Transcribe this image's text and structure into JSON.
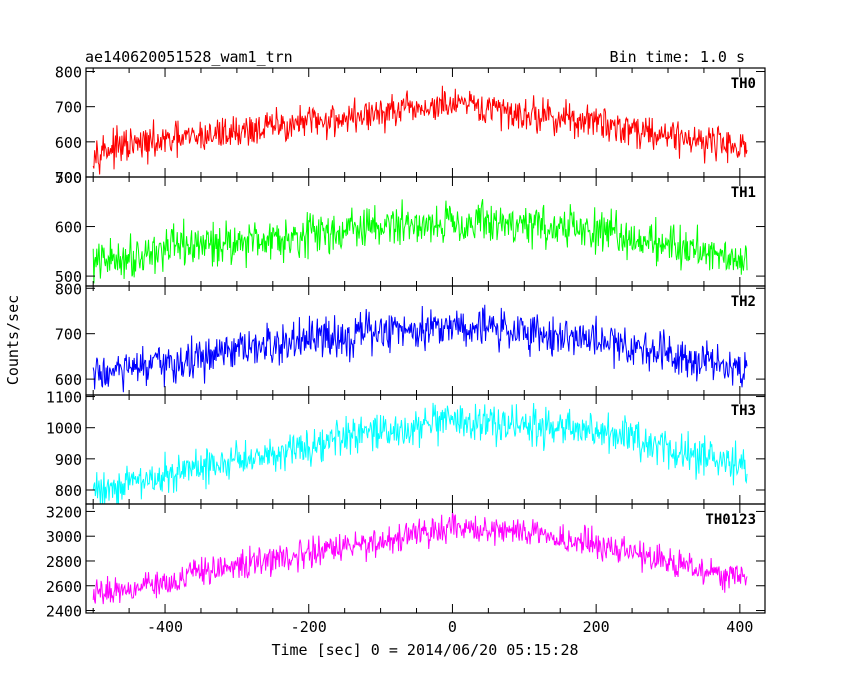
{
  "header": {
    "title": "ae140620051528_wam1_trn",
    "bin_time": "Bin time: 1.0 s"
  },
  "chart_data": {
    "type": "line",
    "title": "ae140620051528_wam1_trn",
    "subtitle": "Bin time: 1.0 s",
    "xlabel": "Time [sec] 0 = 2014/06/20 05:15:28",
    "ylabel": "Counts/sec",
    "xlim": [
      -510,
      435
    ],
    "x_ticks": [
      -400,
      -200,
      0,
      200,
      400
    ],
    "x_start": -500,
    "x_end": 410,
    "bin": 1.0,
    "panels": [
      {
        "name": "TH0",
        "color": "#ff0000",
        "ylim": [
          500,
          810
        ],
        "y_ticks": [
          500,
          600,
          700,
          800
        ],
        "trend": [
          [
            -500,
            575
          ],
          [
            -400,
            600
          ],
          [
            -300,
            630
          ],
          [
            -200,
            655
          ],
          [
            -100,
            680
          ],
          [
            0,
            705
          ],
          [
            100,
            680
          ],
          [
            200,
            655
          ],
          [
            300,
            620
          ],
          [
            410,
            585
          ]
        ],
        "noise": 32
      },
      {
        "name": "TH1",
        "color": "#00ff00",
        "ylim": [
          480,
          700
        ],
        "y_ticks": [
          500,
          600,
          700
        ],
        "trend": [
          [
            -500,
            525
          ],
          [
            -400,
            555
          ],
          [
            -300,
            570
          ],
          [
            -200,
            585
          ],
          [
            -100,
            600
          ],
          [
            0,
            610
          ],
          [
            100,
            605
          ],
          [
            200,
            590
          ],
          [
            300,
            565
          ],
          [
            410,
            535
          ]
        ],
        "noise": 28
      },
      {
        "name": "TH2",
        "color": "#0000ff",
        "ylim": [
          565,
          805
        ],
        "y_ticks": [
          600,
          700,
          800
        ],
        "trend": [
          [
            -500,
            610
          ],
          [
            -400,
            630
          ],
          [
            -300,
            660
          ],
          [
            -200,
            685
          ],
          [
            -100,
            705
          ],
          [
            0,
            720
          ],
          [
            100,
            705
          ],
          [
            200,
            685
          ],
          [
            300,
            660
          ],
          [
            410,
            625
          ]
        ],
        "noise": 30
      },
      {
        "name": "TH3",
        "color": "#00ffff",
        "ylim": [
          755,
          1105
        ],
        "y_ticks": [
          800,
          900,
          1000,
          1100
        ],
        "trend": [
          [
            -500,
            800
          ],
          [
            -400,
            845
          ],
          [
            -300,
            895
          ],
          [
            -200,
            945
          ],
          [
            -100,
            985
          ],
          [
            0,
            1015
          ],
          [
            100,
            1010
          ],
          [
            200,
            985
          ],
          [
            300,
            935
          ],
          [
            410,
            870
          ]
        ],
        "noise": 40
      },
      {
        "name": "TH0123",
        "color": "#ff00ff",
        "ylim": [
          2380,
          3260
        ],
        "y_ticks": [
          2400,
          2600,
          2800,
          3000,
          3200
        ],
        "trend": [
          [
            -500,
            2530
          ],
          [
            -400,
            2640
          ],
          [
            -300,
            2760
          ],
          [
            -200,
            2860
          ],
          [
            -100,
            2960
          ],
          [
            0,
            3060
          ],
          [
            100,
            3030
          ],
          [
            200,
            2940
          ],
          [
            300,
            2800
          ],
          [
            410,
            2640
          ]
        ],
        "noise": 75
      }
    ]
  }
}
